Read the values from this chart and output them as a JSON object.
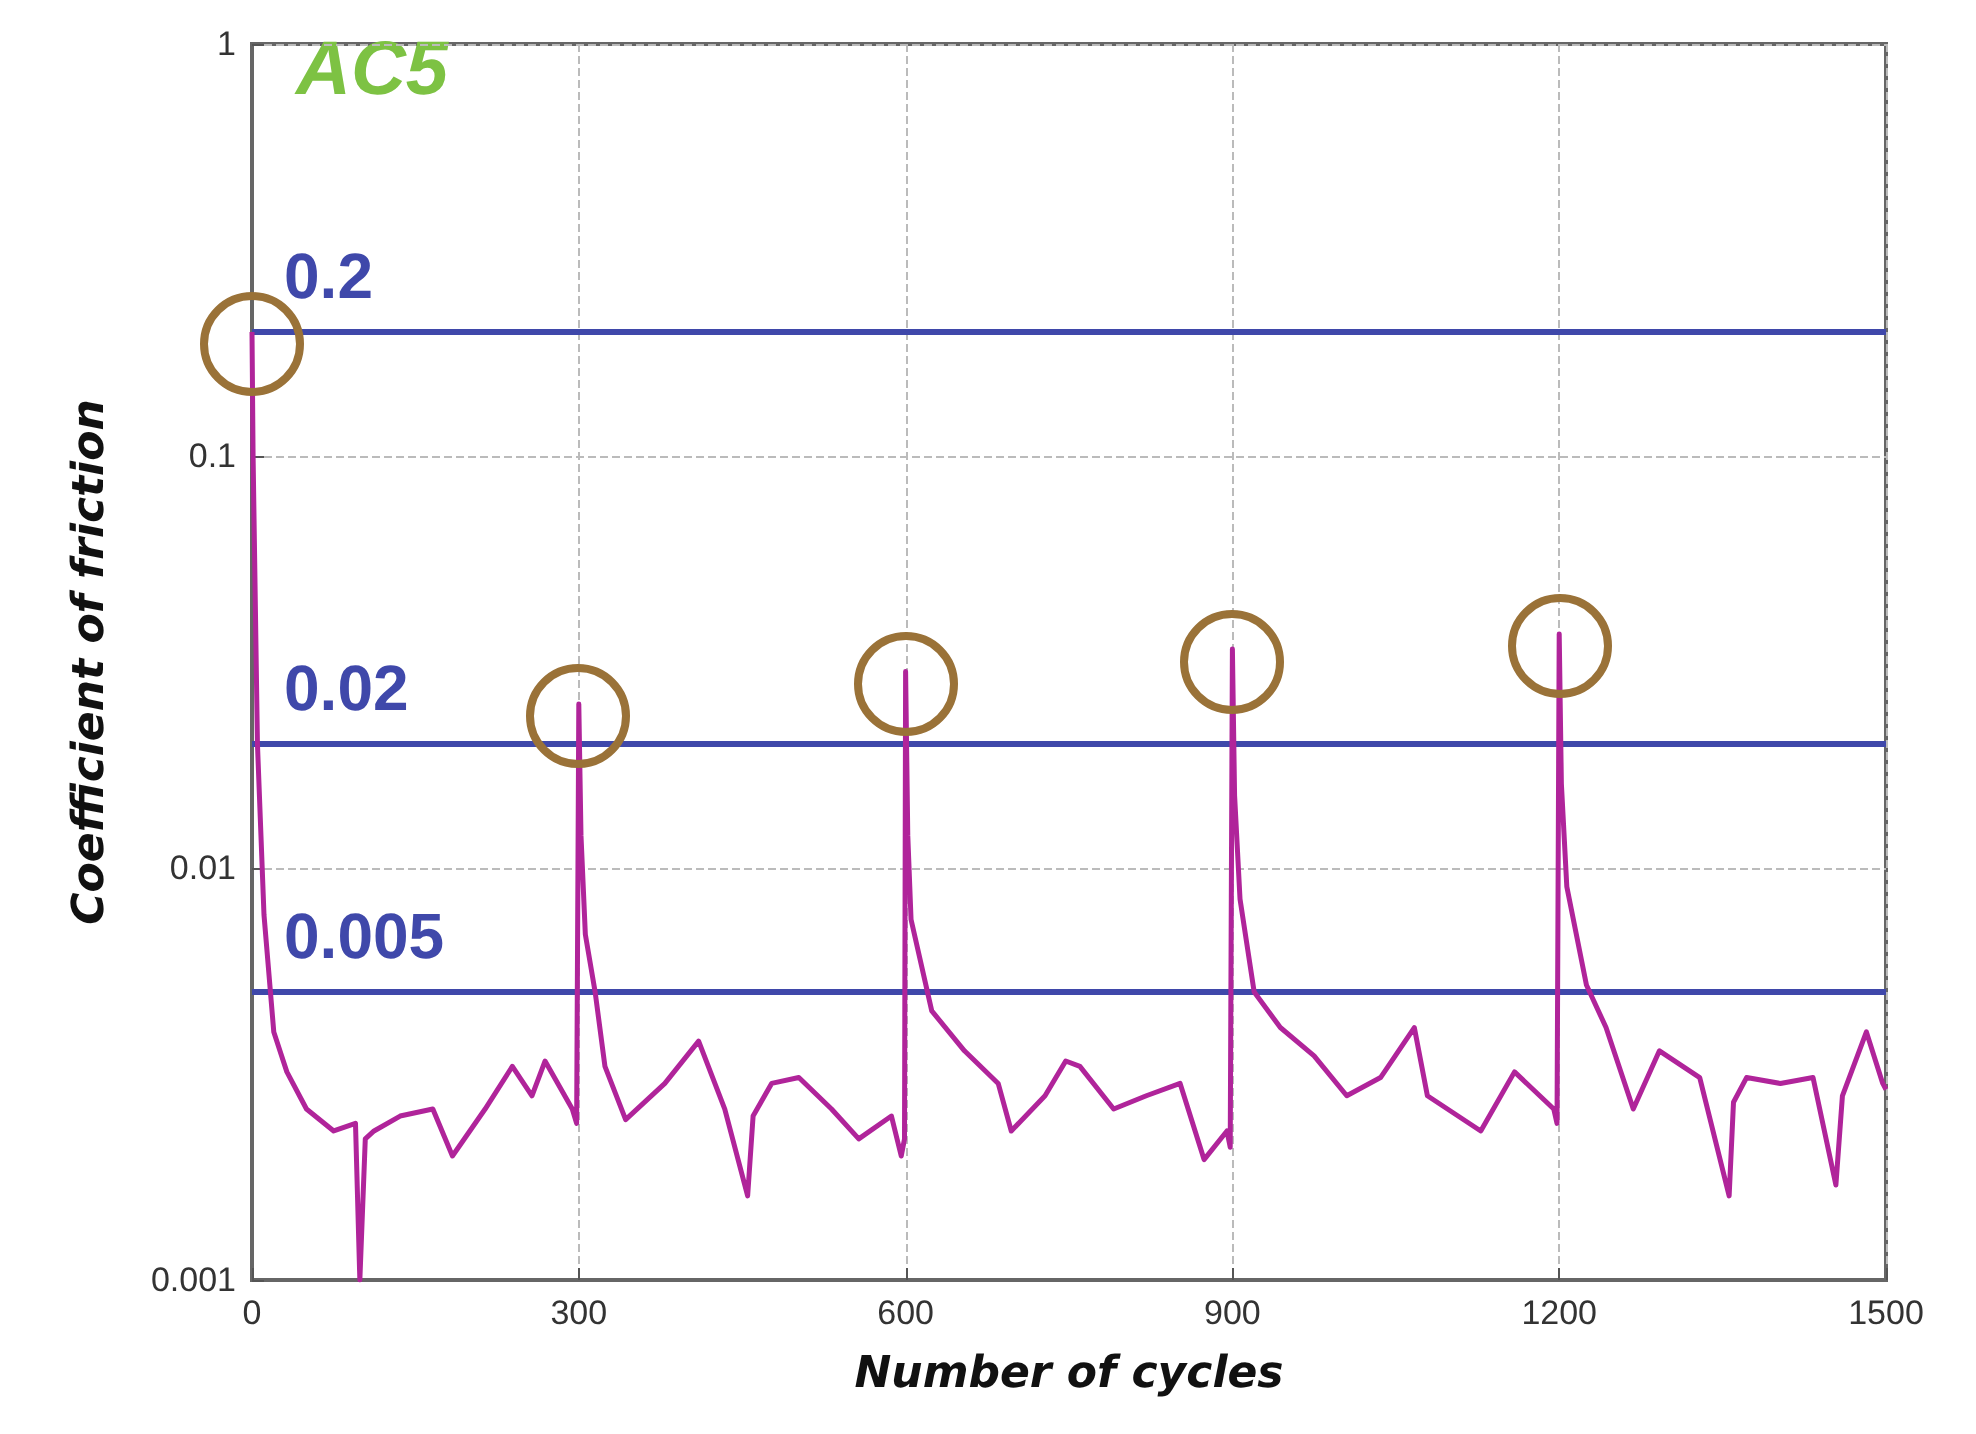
{
  "chart_data": {
    "type": "line",
    "xlabel": "Number of cycles",
    "ylabel": "Coefficient of friction",
    "annotations": [
      "AC5"
    ],
    "log": "y",
    "xlim": [
      0,
      1500
    ],
    "xticks": [
      0,
      300,
      600,
      900,
      1200,
      1500
    ],
    "ylim": [
      0.001,
      1
    ],
    "yticks": [
      0.001,
      0.01,
      0.1,
      1
    ],
    "grid": true,
    "marker": "none",
    "line_style": "solid",
    "ref_lines": [
      {
        "axis": "y",
        "value": 0.2,
        "label": "0.2",
        "color": "#3f48aa"
      },
      {
        "axis": "y",
        "value": 0.02,
        "label": "0.02",
        "color": "#3f48aa"
      },
      {
        "axis": "y",
        "value": 0.005,
        "label": "0.005",
        "color": "#3f48aa"
      }
    ],
    "series": [
      {
        "color": "#b0249a",
        "x": [
          0,
          1,
          5,
          11,
          20,
          32,
          50,
          75,
          95,
          99,
          104,
          112,
          136,
          166,
          184,
          214,
          239,
          257,
          269,
          294,
          298,
          300,
          302,
          306,
          315,
          324,
          343,
          379,
          410,
          434,
          455,
          460,
          477,
          502,
          532,
          557,
          587,
          596,
          599,
          600,
          602,
          605,
          624,
          654,
          685,
          697,
          728,
          747,
          760,
          791,
          821,
          852,
          874,
          895,
          898,
          900,
          902,
          907,
          920,
          944,
          975,
          1005,
          1036,
          1067,
          1079,
          1128,
          1159,
          1195,
          1198,
          1200,
          1202,
          1207,
          1225,
          1243,
          1268,
          1292,
          1329,
          1356,
          1360,
          1372,
          1403,
          1433,
          1454,
          1460,
          1482,
          1497,
          1500
        ],
        "values": [
          0.2,
          0.1,
          0.02,
          0.0077,
          0.004,
          0.0032,
          0.0026,
          0.0023,
          0.0024,
          0.001,
          0.0022,
          0.0023,
          0.0025,
          0.0026,
          0.002,
          0.0026,
          0.0033,
          0.0028,
          0.0034,
          0.0026,
          0.0024,
          0.025,
          0.012,
          0.0069,
          0.005,
          0.0033,
          0.00245,
          0.003,
          0.0038,
          0.0026,
          0.0016,
          0.0025,
          0.003,
          0.0031,
          0.0026,
          0.0022,
          0.0025,
          0.002,
          0.0022,
          0.03,
          0.012,
          0.0075,
          0.0045,
          0.0036,
          0.003,
          0.0023,
          0.0028,
          0.0034,
          0.0033,
          0.0026,
          0.0028,
          0.003,
          0.00196,
          0.0023,
          0.0021,
          0.034,
          0.015,
          0.0084,
          0.005,
          0.0041,
          0.0035,
          0.0028,
          0.0031,
          0.0041,
          0.0028,
          0.0023,
          0.0032,
          0.0026,
          0.0024,
          0.037,
          0.016,
          0.009,
          0.0052,
          0.0041,
          0.0026,
          0.0036,
          0.0031,
          0.0016,
          0.0027,
          0.0031,
          0.003,
          0.0031,
          0.0017,
          0.0028,
          0.004,
          0.003,
          0.0029
        ]
      }
    ]
  }
}
